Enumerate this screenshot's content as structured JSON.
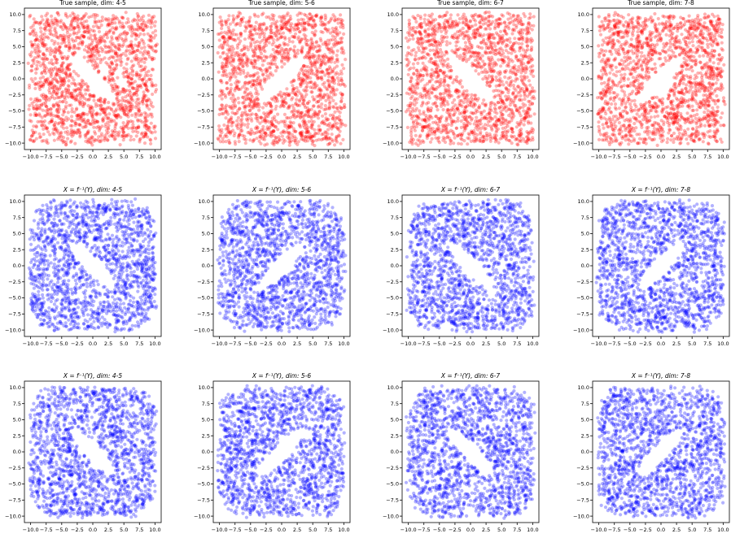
{
  "figure": {
    "rows": 3,
    "cols": 4
  },
  "chart_data": [
    {
      "type": "scatter",
      "title": "True sample, dim: 4-5",
      "title_tex": false,
      "color": "#ff0000",
      "alpha": 0.3,
      "orientation": "neg",
      "xlim": [
        -11,
        11
      ],
      "ylim": [
        -11,
        11
      ],
      "xticks": [
        -10.0,
        -7.5,
        -5.0,
        -2.5,
        0.0,
        2.5,
        5.0,
        7.5,
        10.0
      ],
      "yticks": [
        -10.0,
        -7.5,
        -5.0,
        -2.5,
        0.0,
        2.5,
        5.0,
        7.5,
        10.0
      ],
      "xticklabels": [
        "−10.0",
        "−7.5",
        "−5.0",
        "−2.5",
        "0.0",
        "2.5",
        "5.0",
        "7.5",
        "10.0"
      ],
      "yticklabels": [
        "−10.0",
        "−7.5",
        "−5.0",
        "−2.5",
        "0.0",
        "2.5",
        "5.0",
        "7.5",
        "10.0"
      ],
      "distribution": "uniform in [-10,10]² excluding a tilted ellipse (semi-axes ~5 and ~1.3) centred at origin"
    },
    {
      "type": "scatter",
      "title": "True sample, dim: 5-6",
      "title_tex": false,
      "color": "#ff0000",
      "alpha": 0.3,
      "orientation": "pos",
      "xlim": [
        -11,
        11
      ],
      "ylim": [
        -11,
        11
      ],
      "xticks": [
        -10.0,
        -7.5,
        -5.0,
        -2.5,
        0.0,
        2.5,
        5.0,
        7.5,
        10.0
      ],
      "yticks": [
        -10.0,
        -7.5,
        -5.0,
        -2.5,
        0.0,
        2.5,
        5.0,
        7.5,
        10.0
      ],
      "xticklabels": [
        "−10.0",
        "−7.5",
        "−5.0",
        "−2.5",
        "0.0",
        "2.5",
        "5.0",
        "7.5",
        "10.0"
      ],
      "yticklabels": [
        "−10.0",
        "−7.5",
        "−5.0",
        "−2.5",
        "0.0",
        "2.5",
        "5.0",
        "7.5",
        "10.0"
      ],
      "distribution": "uniform in [-10,10]² excluding a tilted ellipse (semi-axes ~5 and ~1.3) centred at origin"
    },
    {
      "type": "scatter",
      "title": "True sample, dim: 6-7",
      "title_tex": false,
      "color": "#ff0000",
      "alpha": 0.3,
      "orientation": "neg",
      "xlim": [
        -11,
        11
      ],
      "ylim": [
        -11,
        11
      ],
      "xticks": [
        -10.0,
        -7.5,
        -5.0,
        -2.5,
        0.0,
        2.5,
        5.0,
        7.5,
        10.0
      ],
      "yticks": [
        -10.0,
        -7.5,
        -5.0,
        -2.5,
        0.0,
        2.5,
        5.0,
        7.5,
        10.0
      ],
      "xticklabels": [
        "−10.0",
        "−7.5",
        "−5.0",
        "−2.5",
        "0.0",
        "2.5",
        "5.0",
        "7.5",
        "10.0"
      ],
      "yticklabels": [
        "−10.0",
        "−7.5",
        "−5.0",
        "−2.5",
        "0.0",
        "2.5",
        "5.0",
        "7.5",
        "10.0"
      ],
      "distribution": "uniform in [-10,10]² excluding a tilted ellipse (semi-axes ~5 and ~1.3) centred at origin"
    },
    {
      "type": "scatter",
      "title": "True sample, dim: 7-8",
      "title_tex": false,
      "color": "#ff0000",
      "alpha": 0.3,
      "orientation": "pos",
      "xlim": [
        -11,
        11
      ],
      "ylim": [
        -11,
        11
      ],
      "xticks": [
        -10.0,
        -7.5,
        -5.0,
        -2.5,
        0.0,
        2.5,
        5.0,
        7.5,
        10.0
      ],
      "yticks": [
        -10.0,
        -7.5,
        -5.0,
        -2.5,
        0.0,
        2.5,
        5.0,
        7.5,
        10.0
      ],
      "xticklabels": [
        "−10.0",
        "−7.5",
        "−5.0",
        "−2.5",
        "0.0",
        "2.5",
        "5.0",
        "7.5",
        "10.0"
      ],
      "yticklabels": [
        "−10.0",
        "−7.5",
        "−5.0",
        "−2.5",
        "0.0",
        "2.5",
        "5.0",
        "7.5",
        "10.0"
      ],
      "distribution": "uniform in [-10,10]² excluding a tilted ellipse (semi-axes ~5 and ~1.3) centred at origin"
    },
    {
      "type": "scatter",
      "title": "X = f⁻¹(Y), dim: 4-5",
      "title_tex": true,
      "color": "#0000ff",
      "alpha": 0.3,
      "orientation": "neg",
      "xlim": [
        -11,
        11
      ],
      "ylim": [
        -11,
        11
      ],
      "xticks": [
        -10.0,
        -7.5,
        -5.0,
        -2.5,
        0.0,
        2.5,
        5.0,
        7.5,
        10.0
      ],
      "yticks": [
        -10.0,
        -7.5,
        -5.0,
        -2.5,
        0.0,
        2.5,
        5.0,
        7.5,
        10.0
      ],
      "xticklabels": [
        "−10.0",
        "−7.5",
        "−5.0",
        "−2.5",
        "0.0",
        "2.5",
        "5.0",
        "7.5",
        "10.0"
      ],
      "yticklabels": [
        "−10.0",
        "−7.5",
        "−5.0",
        "−2.5",
        "0.0",
        "2.5",
        "5.0",
        "7.5",
        "10.0"
      ],
      "distribution": "approximately uniform in [-10,10]² with rounded corners, excluding a tilted ellipse centred at origin"
    },
    {
      "type": "scatter",
      "title": "X = f⁻¹(Y), dim: 5-6",
      "title_tex": true,
      "color": "#0000ff",
      "alpha": 0.3,
      "orientation": "pos",
      "xlim": [
        -11,
        11
      ],
      "ylim": [
        -11,
        11
      ],
      "xticks": [
        -10.0,
        -7.5,
        -5.0,
        -2.5,
        0.0,
        2.5,
        5.0,
        7.5,
        10.0
      ],
      "yticks": [
        -10.0,
        -7.5,
        -5.0,
        -2.5,
        0.0,
        2.5,
        5.0,
        7.5,
        10.0
      ],
      "xticklabels": [
        "−10.0",
        "−7.5",
        "−5.0",
        "−2.5",
        "0.0",
        "2.5",
        "5.0",
        "7.5",
        "10.0"
      ],
      "yticklabels": [
        "−10.0",
        "−7.5",
        "−5.0",
        "−2.5",
        "0.0",
        "2.5",
        "5.0",
        "7.5",
        "10.0"
      ],
      "distribution": "approximately uniform in [-10,10]² with rounded corners, excluding a tilted ellipse centred at origin"
    },
    {
      "type": "scatter",
      "title": "X = f⁻¹(Y), dim: 6-7",
      "title_tex": true,
      "color": "#0000ff",
      "alpha": 0.3,
      "orientation": "neg",
      "xlim": [
        -11,
        11
      ],
      "ylim": [
        -11,
        11
      ],
      "xticks": [
        -10.0,
        -7.5,
        -5.0,
        -2.5,
        0.0,
        2.5,
        5.0,
        7.5,
        10.0
      ],
      "yticks": [
        -10.0,
        -7.5,
        -5.0,
        -2.5,
        0.0,
        2.5,
        5.0,
        7.5,
        10.0
      ],
      "xticklabels": [
        "−10.0",
        "−7.5",
        "−5.0",
        "−2.5",
        "0.0",
        "2.5",
        "5.0",
        "7.5",
        "10.0"
      ],
      "yticklabels": [
        "−10.0",
        "−7.5",
        "−5.0",
        "−2.5",
        "0.0",
        "2.5",
        "5.0",
        "7.5",
        "10.0"
      ],
      "distribution": "approximately uniform in [-10,10]² with rounded corners, excluding a tilted ellipse centred at origin"
    },
    {
      "type": "scatter",
      "title": "X = f⁻¹(Y), dim: 7-8",
      "title_tex": true,
      "color": "#0000ff",
      "alpha": 0.3,
      "orientation": "pos",
      "xlim": [
        -11,
        11
      ],
      "ylim": [
        -11,
        11
      ],
      "xticks": [
        -10.0,
        -7.5,
        -5.0,
        -2.5,
        0.0,
        2.5,
        5.0,
        7.5,
        10.0
      ],
      "yticks": [
        -10.0,
        -7.5,
        -5.0,
        -2.5,
        0.0,
        2.5,
        5.0,
        7.5,
        10.0
      ],
      "xticklabels": [
        "−10.0",
        "−7.5",
        "−5.0",
        "−2.5",
        "0.0",
        "2.5",
        "5.0",
        "7.5",
        "10.0"
      ],
      "yticklabels": [
        "−10.0",
        "−7.5",
        "−5.0",
        "−2.5",
        "0.0",
        "2.5",
        "5.0",
        "7.5",
        "10.0"
      ],
      "distribution": "approximately uniform in [-10,10]² with rounded corners, excluding a tilted ellipse centred at origin"
    },
    {
      "type": "scatter",
      "title": "X = f⁻¹(Y), dim: 4-5",
      "title_tex": true,
      "color": "#0000ff",
      "alpha": 0.3,
      "orientation": "neg",
      "xlim": [
        -11,
        11
      ],
      "ylim": [
        -11,
        11
      ],
      "xticks": [
        -10.0,
        -7.5,
        -5.0,
        -2.5,
        0.0,
        2.5,
        5.0,
        7.5,
        10.0
      ],
      "yticks": [
        -10.0,
        -7.5,
        -5.0,
        -2.5,
        0.0,
        2.5,
        5.0,
        7.5,
        10.0
      ],
      "xticklabels": [
        "−10.0",
        "−7.5",
        "−5.0",
        "−2.5",
        "0.0",
        "2.5",
        "5.0",
        "7.5",
        "10.0"
      ],
      "yticklabels": [
        "−10.0",
        "−7.5",
        "−5.0",
        "−2.5",
        "0.0",
        "2.5",
        "5.0",
        "7.5",
        "10.0"
      ],
      "distribution": "approximately uniform in [-10,10]² with rounded corners, excluding a tilted ellipse centred at origin"
    },
    {
      "type": "scatter",
      "title": "X = f⁻¹(Y), dim: 5-6",
      "title_tex": true,
      "color": "#0000ff",
      "alpha": 0.3,
      "orientation": "pos",
      "xlim": [
        -11,
        11
      ],
      "ylim": [
        -11,
        11
      ],
      "xticks": [
        -10.0,
        -7.5,
        -5.0,
        -2.5,
        0.0,
        2.5,
        5.0,
        7.5,
        10.0
      ],
      "yticks": [
        -10.0,
        -7.5,
        -5.0,
        -2.5,
        0.0,
        2.5,
        5.0,
        7.5,
        10.0
      ],
      "xticklabels": [
        "−10.0",
        "−7.5",
        "−5.0",
        "−2.5",
        "0.0",
        "2.5",
        "5.0",
        "7.5",
        "10.0"
      ],
      "yticklabels": [
        "−10.0",
        "−7.5",
        "−5.0",
        "−2.5",
        "0.0",
        "2.5",
        "5.0",
        "7.5",
        "10.0"
      ],
      "distribution": "approximately uniform in [-10,10]² with rounded corners, excluding a tilted ellipse centred at origin"
    },
    {
      "type": "scatter",
      "title": "X = f⁻¹(Y), dim: 6-7",
      "title_tex": true,
      "color": "#0000ff",
      "alpha": 0.3,
      "orientation": "neg",
      "xlim": [
        -11,
        11
      ],
      "ylim": [
        -11,
        11
      ],
      "xticks": [
        -10.0,
        -7.5,
        -5.0,
        -2.5,
        0.0,
        2.5,
        5.0,
        7.5,
        10.0
      ],
      "yticks": [
        -10.0,
        -7.5,
        -5.0,
        -2.5,
        0.0,
        2.5,
        5.0,
        7.5,
        10.0
      ],
      "xticklabels": [
        "−10.0",
        "−7.5",
        "−5.0",
        "−2.5",
        "0.0",
        "2.5",
        "5.0",
        "7.5",
        "10.0"
      ],
      "yticklabels": [
        "−10.0",
        "−7.5",
        "−5.0",
        "−2.5",
        "0.0",
        "2.5",
        "5.0",
        "7.5",
        "10.0"
      ],
      "distribution": "approximately uniform in [-10,10]² with rounded corners, excluding a tilted ellipse centred at origin"
    },
    {
      "type": "scatter",
      "title": "X = f⁻¹(Y), dim: 7-8",
      "title_tex": true,
      "color": "#0000ff",
      "alpha": 0.3,
      "orientation": "pos",
      "xlim": [
        -11,
        11
      ],
      "ylim": [
        -11,
        11
      ],
      "xticks": [
        -10.0,
        -7.5,
        -5.0,
        -2.5,
        0.0,
        2.5,
        5.0,
        7.5,
        10.0
      ],
      "yticks": [
        -10.0,
        -7.5,
        -5.0,
        -2.5,
        0.0,
        2.5,
        5.0,
        7.5,
        10.0
      ],
      "xticklabels": [
        "−10.0",
        "−7.5",
        "−5.0",
        "−2.5",
        "0.0",
        "2.5",
        "5.0",
        "7.5",
        "10.0"
      ],
      "yticklabels": [
        "−10.0",
        "−7.5",
        "−5.0",
        "−2.5",
        "0.0",
        "2.5",
        "5.0",
        "7.5",
        "10.0"
      ],
      "distribution": "approximately uniform in [-10,10]² with rounded corners, excluding a tilted ellipse centred at origin"
    }
  ]
}
